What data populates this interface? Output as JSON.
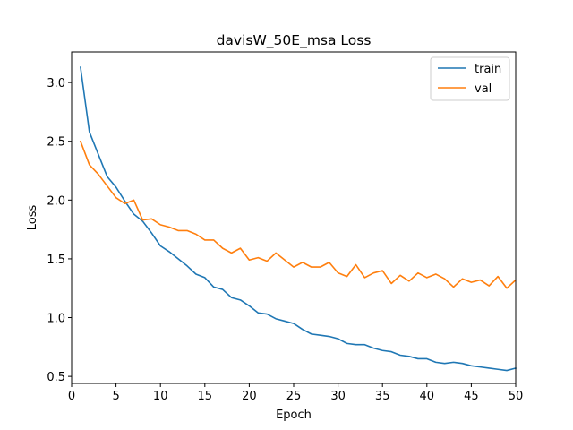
{
  "chart_data": {
    "type": "line",
    "title": "davisW_50E_msa Loss",
    "xlabel": "Epoch",
    "ylabel": "Loss",
    "xlim": [
      0,
      50
    ],
    "ylim": [
      0.44,
      3.26
    ],
    "xticks": [
      0,
      5,
      10,
      15,
      20,
      25,
      30,
      35,
      40,
      45,
      50
    ],
    "yticks": [
      0.5,
      1.0,
      1.5,
      2.0,
      2.5,
      3.0
    ],
    "ytick_labels": [
      "0.5",
      "1.0",
      "1.5",
      "2.0",
      "2.5",
      "3.0"
    ],
    "grid": false,
    "legend_position": "top-right",
    "x": [
      1,
      2,
      3,
      4,
      5,
      6,
      7,
      8,
      9,
      10,
      11,
      12,
      13,
      14,
      15,
      16,
      17,
      18,
      19,
      20,
      21,
      22,
      23,
      24,
      25,
      26,
      27,
      28,
      29,
      30,
      31,
      32,
      33,
      34,
      35,
      36,
      37,
      38,
      39,
      40,
      41,
      42,
      43,
      44,
      45,
      46,
      47,
      48,
      49,
      50
    ],
    "series": [
      {
        "name": "train",
        "color": "#1f77b4",
        "values": [
          3.13,
          2.58,
          2.39,
          2.2,
          2.11,
          1.99,
          1.88,
          1.82,
          1.72,
          1.61,
          1.56,
          1.5,
          1.44,
          1.37,
          1.34,
          1.26,
          1.24,
          1.17,
          1.15,
          1.1,
          1.04,
          1.03,
          0.99,
          0.97,
          0.95,
          0.9,
          0.86,
          0.85,
          0.84,
          0.82,
          0.78,
          0.77,
          0.77,
          0.74,
          0.72,
          0.71,
          0.68,
          0.67,
          0.65,
          0.65,
          0.62,
          0.61,
          0.62,
          0.61,
          0.59,
          0.58,
          0.57,
          0.56,
          0.55,
          0.57
        ]
      },
      {
        "name": "val",
        "color": "#ff7f0e",
        "values": [
          2.5,
          2.3,
          2.22,
          2.12,
          2.02,
          1.97,
          2.0,
          1.83,
          1.84,
          1.79,
          1.77,
          1.74,
          1.74,
          1.71,
          1.66,
          1.66,
          1.59,
          1.55,
          1.59,
          1.49,
          1.51,
          1.48,
          1.55,
          1.49,
          1.43,
          1.47,
          1.43,
          1.43,
          1.47,
          1.38,
          1.35,
          1.45,
          1.34,
          1.38,
          1.4,
          1.29,
          1.36,
          1.31,
          1.38,
          1.34,
          1.37,
          1.33,
          1.26,
          1.33,
          1.3,
          1.32,
          1.27,
          1.35,
          1.25,
          1.32
        ]
      }
    ]
  }
}
